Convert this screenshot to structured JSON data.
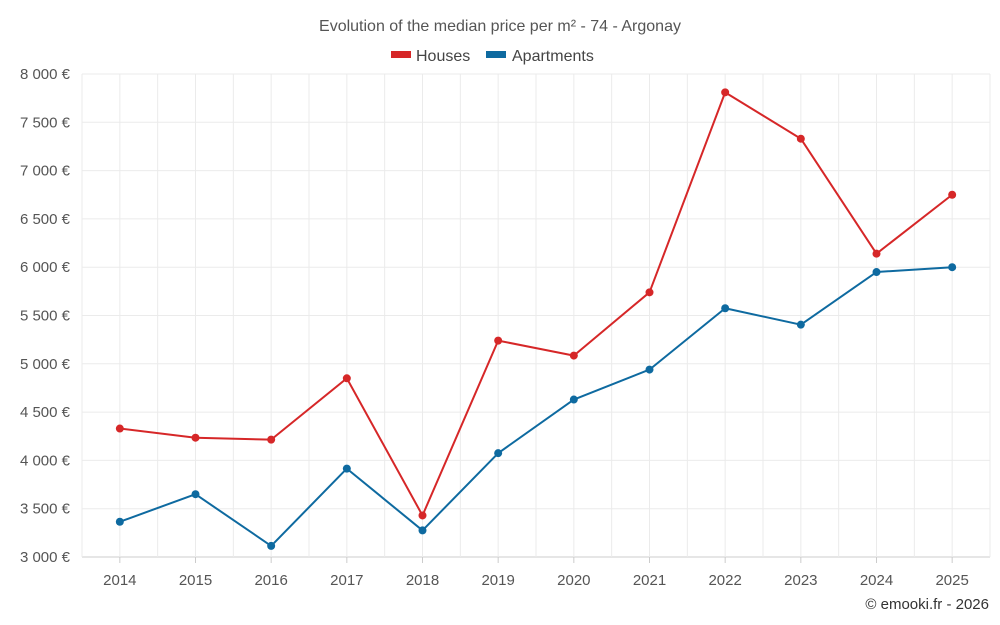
{
  "chart_data": {
    "type": "line",
    "title": "Evolution of the median price per m² - 74 - Argonay",
    "categories": [
      "2014",
      "2015",
      "2016",
      "2017",
      "2018",
      "2019",
      "2020",
      "2021",
      "2022",
      "2023",
      "2024",
      "2025"
    ],
    "series": [
      {
        "name": "Houses",
        "color": "#d62728",
        "values": [
          4330,
          4235,
          4215,
          4850,
          3430,
          5240,
          5085,
          5740,
          7810,
          7330,
          6140,
          6750
        ]
      },
      {
        "name": "Apartments",
        "color": "#0e6aa0",
        "values": [
          3365,
          3650,
          3115,
          3915,
          3275,
          4075,
          4630,
          4940,
          5575,
          5405,
          5950,
          6000
        ]
      }
    ],
    "ylim": [
      3000,
      8000
    ],
    "yticks": [
      3000,
      3500,
      4000,
      4500,
      5000,
      5500,
      6000,
      6500,
      7000,
      7500,
      8000
    ],
    "ytick_labels": [
      "3 000 €",
      "3 500 €",
      "4 000 €",
      "4 500 €",
      "5 000 €",
      "5 500 €",
      "6 000 €",
      "6 500 €",
      "7 000 €",
      "7 500 €",
      "8 000 €"
    ],
    "grid": true,
    "legend_position": "top-center",
    "credit": "© emooki.fr - 2026"
  }
}
